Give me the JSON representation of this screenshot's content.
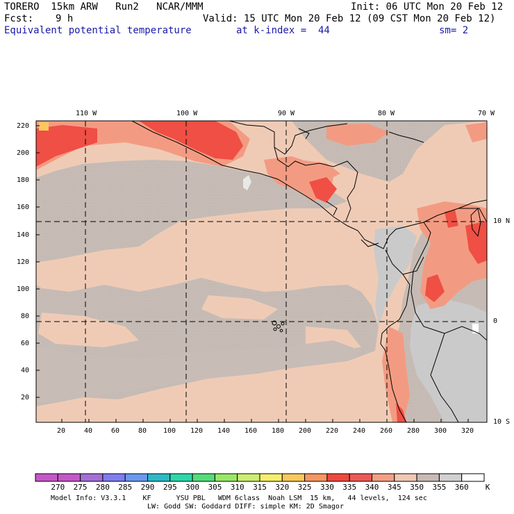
{
  "header": {
    "model": "TORERO  15km ARW   Run2   NCAR/MMM",
    "init": "Init: 06 UTC Mon 20 Feb 12",
    "fcst_label": "Fcst:",
    "fcst_value": "9 h",
    "valid": "Valid: 15 UTC Mon 20 Feb 12 (09 CST Mon 20 Feb 12)",
    "field": "Equivalent potential temperature",
    "level": "at k-index =  44",
    "smooth": "sm= 2"
  },
  "map": {
    "lon_labels": [
      "110 W",
      "100 W",
      "90 W",
      "80 W",
      "70 W"
    ],
    "lat_labels": [
      "10 N",
      "0",
      "10 S"
    ],
    "y_ticks": [
      "220",
      "200",
      "180",
      "160",
      "140",
      "120",
      "100",
      "80",
      "60",
      "40",
      "20"
    ],
    "x_ticks": [
      "20",
      "40",
      "60",
      "80",
      "100",
      "120",
      "140",
      "160",
      "180",
      "200",
      "220",
      "240",
      "260",
      "280",
      "300",
      "320"
    ],
    "colors": {
      "background_field": "#c6bcb5",
      "warm_field": "#efcbb6",
      "hot_field": "#f7977d",
      "hottest_field": "#ef4c42",
      "land_cool": "#c8c8c8",
      "coastline": "#000000"
    }
  },
  "colorbar": {
    "labels": [
      "270",
      "275",
      "280",
      "285",
      "290",
      "295",
      "300",
      "305",
      "310",
      "315",
      "320",
      "325",
      "330",
      "335",
      "340",
      "345",
      "350",
      "355",
      "360"
    ],
    "unit": "K",
    "colors": [
      "#c558c7",
      "#a56fd6",
      "#7f7df0",
      "#6b98ee",
      "#2bb9c6",
      "#2ed7a9",
      "#55dd7a",
      "#99e768",
      "#cdee73",
      "#f6ee6e",
      "#f8c95c",
      "#f69663",
      "#f0483f",
      "#ec5a57",
      "#f39f85",
      "#f0c9b3",
      "#c8bbb5",
      "#d1d1d1",
      "#ffffff"
    ]
  },
  "footer": {
    "line1": "Model Info: V3.3.1    KF      YSU PBL   WDM 6class  Noah LSM  15 km,   44 levels,  124 sec",
    "line2": "LW: Godd SW: Goddard DIFF: simple KM: 2D Smagor"
  }
}
